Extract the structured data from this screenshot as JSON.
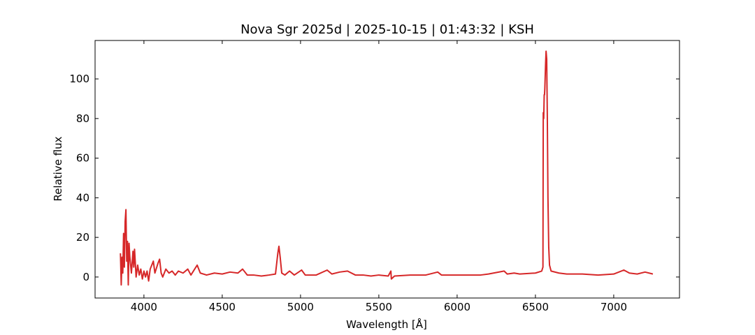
{
  "chart_data": {
    "type": "line",
    "title": "Nova Sgr 2025d | 2025-10-15 | 01:43:32 | KSH",
    "x_label": "Wavelength [Å]",
    "y_label": "Relative flux",
    "color": "#d62728",
    "x": [
      3850,
      3855,
      3860,
      3865,
      3870,
      3875,
      3880,
      3885,
      3890,
      3895,
      3900,
      3905,
      3910,
      3920,
      3930,
      3935,
      3940,
      3950,
      3960,
      3970,
      3980,
      3990,
      4000,
      4010,
      4020,
      4030,
      4040,
      4060,
      4070,
      4090,
      4100,
      4110,
      4120,
      4140,
      4160,
      4180,
      4200,
      4220,
      4250,
      4280,
      4300,
      4340,
      4360,
      4400,
      4450,
      4500,
      4550,
      4600,
      4630,
      4660,
      4700,
      4750,
      4800,
      4840,
      4855,
      4862,
      4870,
      4880,
      4900,
      4930,
      4960,
      5007,
      5030,
      5100,
      5170,
      5200,
      5250,
      5300,
      5350,
      5400,
      5450,
      5500,
      5560,
      5577,
      5580,
      5600,
      5700,
      5800,
      5876,
      5900,
      6000,
      6100,
      6150,
      6200,
      6300,
      6320,
      6364,
      6400,
      6500,
      6540,
      6548,
      6550,
      6553,
      6556,
      6558,
      6560,
      6565,
      6568,
      6572,
      6576,
      6580,
      6585,
      6590,
      6600,
      6650,
      6700,
      6800,
      6900,
      7000,
      7065,
      7100,
      7150,
      7200,
      7250
    ],
    "values": [
      12,
      -4,
      10,
      2,
      22,
      5,
      28,
      34,
      8,
      18,
      -4,
      17,
      10,
      2,
      13,
      5,
      14,
      0,
      6,
      1,
      4,
      -1,
      3,
      0,
      3,
      -2,
      4,
      8,
      2,
      7,
      9,
      2,
      0,
      4,
      2,
      3,
      1,
      3,
      2,
      4,
      1,
      6,
      2,
      1,
      2,
      1.5,
      2.5,
      2,
      4,
      1,
      1,
      0.5,
      1,
      1.5,
      12,
      15.5,
      10,
      2,
      1,
      3,
      1,
      3.5,
      1,
      1,
      3.5,
      1.5,
      2.5,
      3,
      1,
      1,
      0.5,
      1,
      0.5,
      3,
      -1,
      0.5,
      1,
      1,
      2.5,
      1,
      1,
      1,
      1,
      1.5,
      3,
      1.5,
      2,
      1.5,
      2,
      3,
      5,
      83,
      80,
      92,
      92,
      95,
      108,
      114,
      110,
      80,
      40,
      15,
      6,
      3,
      2,
      1.5,
      1.5,
      1,
      1.5,
      3.5,
      2,
      1.5,
      2.5,
      1.5
    ],
    "xlim": [
      3688,
      7420
    ],
    "ylim": [
      -10.6,
      119.4
    ],
    "xticks": [
      4000,
      4500,
      5000,
      5500,
      6000,
      6500,
      7000
    ],
    "yticks": [
      0,
      20,
      40,
      60,
      80,
      100
    ]
  }
}
